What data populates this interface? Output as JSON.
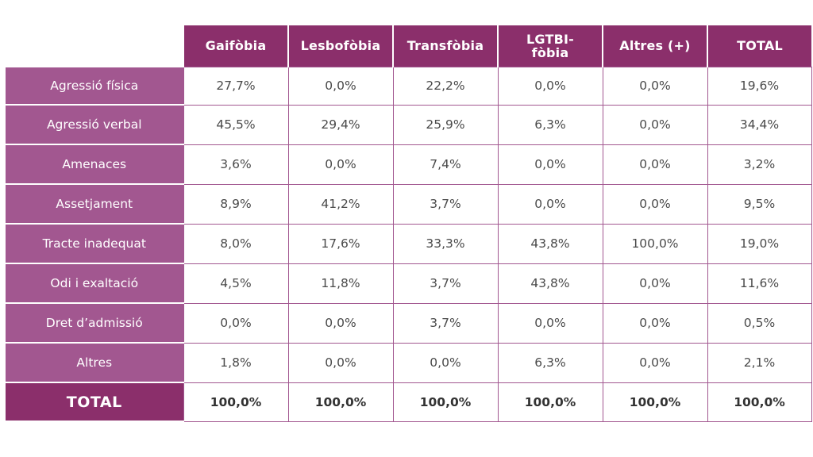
{
  "columns": [
    "Gaifòbia",
    "Lesbofòbia",
    "Transfòbia",
    "LGTBI-\nfòbia",
    "Altres (+)",
    "TOTAL"
  ],
  "rows": [
    {
      "label": "Agressió física",
      "values": [
        "27,7%",
        "0,0%",
        "22,2%",
        "0,0%",
        "0,0%",
        "19,6%"
      ]
    },
    {
      "label": "Agressió verbal",
      "values": [
        "45,5%",
        "29,4%",
        "25,9%",
        "6,3%",
        "0,0%",
        "34,4%"
      ]
    },
    {
      "label": "Amenaces",
      "values": [
        "3,6%",
        "0,0%",
        "7,4%",
        "0,0%",
        "0,0%",
        "3,2%"
      ]
    },
    {
      "label": "Assetjament",
      "values": [
        "8,9%",
        "41,2%",
        "3,7%",
        "0,0%",
        "0,0%",
        "9,5%"
      ]
    },
    {
      "label": "Tracte inadequat",
      "values": [
        "8,0%",
        "17,6%",
        "33,3%",
        "43,8%",
        "100,0%",
        "19,0%"
      ]
    },
    {
      "label": "Odi i exaltació",
      "values": [
        "4,5%",
        "11,8%",
        "3,7%",
        "43,8%",
        "0,0%",
        "11,6%"
      ]
    },
    {
      "label": "Dret d’admissió",
      "values": [
        "0,0%",
        "0,0%",
        "3,7%",
        "0,0%",
        "0,0%",
        "0,5%"
      ]
    },
    {
      "label": "Altres",
      "values": [
        "1,8%",
        "0,0%",
        "0,0%",
        "6,3%",
        "0,0%",
        "2,1%"
      ]
    }
  ],
  "total": {
    "label": "TOTAL",
    "values": [
      "100,0%",
      "100,0%",
      "100,0%",
      "100,0%",
      "100,0%",
      "100,0%"
    ]
  },
  "colors": {
    "header": "#8b2f6b",
    "row_label": "#a25790",
    "grid": "#a25790"
  }
}
